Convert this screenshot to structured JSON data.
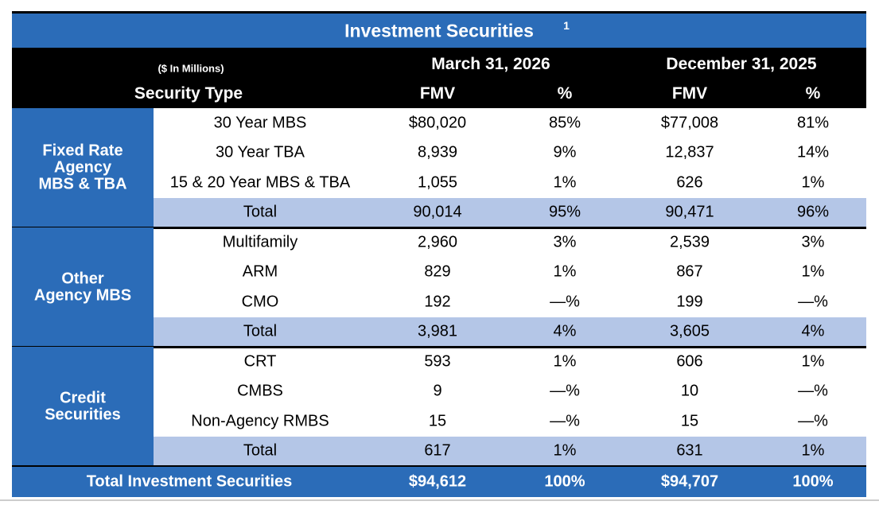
{
  "table": {
    "title": "Investment Securities",
    "title_note": "1",
    "units": "($ In Millions)",
    "type_header": "Security Type",
    "periods": [
      "March 31, 2026",
      "December 31, 2025"
    ],
    "columns": [
      "FMV",
      "%",
      "FMV",
      "%"
    ],
    "groups": [
      {
        "label": [
          "Fixed Rate",
          "Agency",
          "MBS & TBA"
        ],
        "rows": [
          [
            "30 Year MBS",
            "$80,020",
            "85%",
            "$77,008",
            "81%"
          ],
          [
            "30 Year TBA",
            "8,939",
            "9%",
            "12,837",
            "14%"
          ],
          [
            "15 & 20 Year MBS & TBA",
            "1,055",
            "1%",
            "626",
            "1%"
          ],
          [
            "Total",
            "90,014",
            "95%",
            "90,471",
            "96%"
          ]
        ]
      },
      {
        "label": [
          "Other",
          "Agency MBS"
        ],
        "rows": [
          [
            "Multifamily",
            "2,960",
            "3%",
            "2,539",
            "3%"
          ],
          [
            "ARM",
            "829",
            "1%",
            "867",
            "1%"
          ],
          [
            "CMO",
            "192",
            "—%",
            "199",
            "—%"
          ],
          [
            "Total",
            "3,981",
            "4%",
            "3,605",
            "4%"
          ]
        ]
      },
      {
        "label": [
          "Credit",
          "Securities"
        ],
        "rows": [
          [
            "CRT",
            "593",
            "1%",
            "606",
            "1%"
          ],
          [
            "CMBS",
            "9",
            "—%",
            "10",
            "—%"
          ],
          [
            "Non-Agency RMBS",
            "15",
            "—%",
            "15",
            "—%"
          ],
          [
            "Total",
            "617",
            "1%",
            "631",
            "1%"
          ]
        ]
      }
    ],
    "grand_total": [
      "Total Investment Securities",
      "$94,612",
      "100%",
      "$94,707",
      "100%"
    ]
  }
}
